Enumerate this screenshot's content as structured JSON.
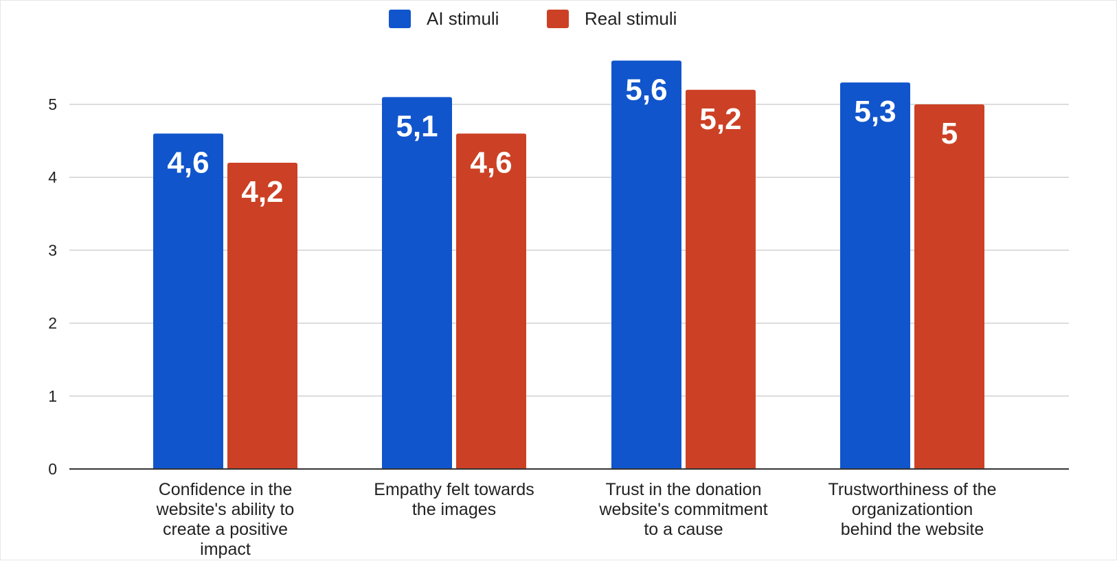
{
  "chart_data": {
    "type": "bar",
    "categories": [
      [
        "Confidence in the",
        "website's ability to",
        "create a positive",
        "impact"
      ],
      [
        "Empathy felt towards",
        "the images"
      ],
      [
        "Trust in the donation",
        "website's commitment",
        "to a cause"
      ],
      [
        "Trustworthiness of the",
        "organizationtion",
        "behind the website"
      ]
    ],
    "series": [
      {
        "name": "AI stimuli",
        "color": "#1155cc",
        "values": [
          4.6,
          5.1,
          5.6,
          5.3
        ],
        "labels": [
          "4,6",
          "5,1",
          "5,6",
          "5,3"
        ]
      },
      {
        "name": "Real stimuli",
        "color": "#cc4125",
        "values": [
          4.2,
          4.6,
          5.2,
          5.0
        ],
        "labels": [
          "4,2",
          "4,6",
          "5,2",
          "5"
        ]
      }
    ],
    "ylim": [
      0,
      5.6
    ],
    "yticks": [
      "0",
      "1",
      "2",
      "3",
      "4",
      "5"
    ],
    "grid": true,
    "legend_position": "top-center",
    "title": "",
    "xlabel": "",
    "ylabel": ""
  }
}
